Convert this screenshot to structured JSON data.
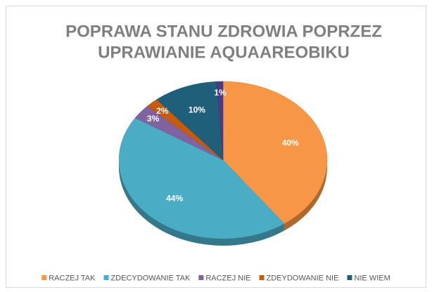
{
  "chart_data": {
    "type": "pie",
    "title": [
      "POPRAWA STANU ZDROWIA POPRZEZ",
      "UPRAWIANIE AQUAAREOBIKU"
    ],
    "categories": [
      "RACZEJ TAK",
      "ZDECYDOWANIE TAK",
      "RACZEJ NIE",
      "ZDEYDOWANIE NIE",
      "NIE WIEM",
      null
    ],
    "values": [
      40,
      44,
      3,
      2,
      10,
      1
    ],
    "value_labels": [
      "40%",
      "44%",
      "3%",
      "2%",
      "10%",
      "1%"
    ],
    "colors": [
      "#f79646",
      "#4bacc6",
      "#8064a2",
      "#c55a11",
      "#1f5f7a",
      "#4b3a86"
    ],
    "legend": "bottom"
  }
}
